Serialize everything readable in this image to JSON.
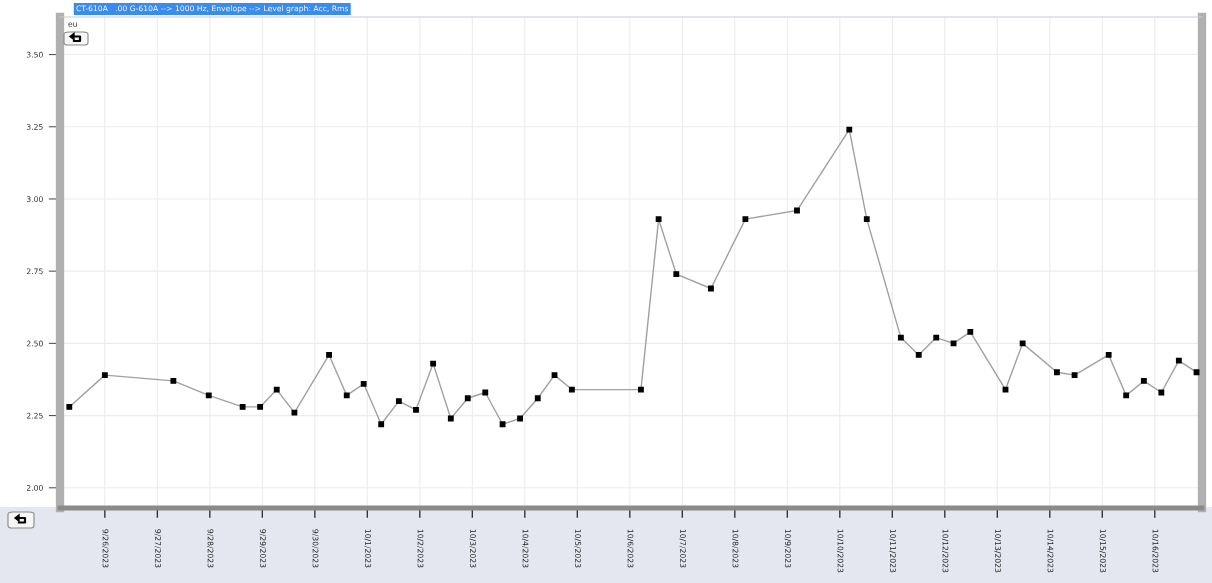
{
  "chart_data": {
    "type": "line",
    "title": "CT-610A   .00 G-610A --> 1000 Hz, Envelope --> Level graph: Acc, Rms",
    "ylabel": "eu",
    "x": [
      "2023-09-25T07:45",
      "2023-09-26T00:00",
      "2023-09-27T07:20",
      "2023-09-27T23:30",
      "2023-09-28T15:00",
      "2023-09-28T23:00",
      "2023-09-29T06:35",
      "2023-09-29T14:40",
      "2023-09-30T06:30",
      "2023-09-30T14:35",
      "2023-09-30T22:20",
      "2023-10-01T06:20",
      "2023-10-01T14:25",
      "2023-10-01T22:15",
      "2023-10-02T06:05",
      "2023-10-02T14:10",
      "2023-10-02T21:55",
      "2023-10-03T05:55",
      "2023-10-03T13:50",
      "2023-10-03T21:50",
      "2023-10-04T05:55",
      "2023-10-04T13:35",
      "2023-10-04T21:30",
      "2023-10-06T05:05",
      "2023-10-06T13:10",
      "2023-10-06T21:15",
      "2023-10-07T13:05",
      "2023-10-08T04:50",
      "2023-10-09T04:25",
      "2023-10-10T04:20",
      "2023-10-10T12:20",
      "2023-10-11T03:55",
      "2023-10-11T12:05",
      "2023-10-11T20:05",
      "2023-10-12T04:00",
      "2023-10-12T11:40",
      "2023-10-13T03:45",
      "2023-10-13T11:35",
      "2023-10-14T03:15",
      "2023-10-14T11:20",
      "2023-10-15T02:55",
      "2023-10-15T10:55",
      "2023-10-15T19:00",
      "2023-10-16T03:00",
      "2023-10-16T11:00",
      "2023-10-16T19:05"
    ],
    "series": [
      {
        "color": "#a0a0a0",
        "values": [
          2.28,
          2.39,
          2.37,
          2.32,
          2.28,
          2.28,
          2.34,
          2.26,
          2.46,
          2.32,
          2.36,
          2.22,
          2.3,
          2.27,
          2.43,
          2.24,
          2.31,
          2.33,
          2.22,
          2.24,
          2.31,
          2.39,
          2.34,
          2.34,
          2.93,
          2.74,
          2.69,
          2.93,
          2.96,
          3.24,
          2.93,
          2.52,
          2.46,
          2.52,
          2.5,
          2.54,
          2.34,
          2.5,
          2.4,
          2.39,
          2.46,
          2.32,
          2.37,
          2.33,
          2.44,
          2.4
        ]
      }
    ],
    "marker": "square",
    "line_style": "solid",
    "xlim": [
      "2023-09-25T03:30",
      "2023-10-16T21:35"
    ],
    "xticks": [
      {
        "value": "2023-09-26",
        "label": "9/26/2023"
      },
      {
        "value": "2023-09-27",
        "label": "9/27/2023"
      },
      {
        "value": "2023-09-28",
        "label": "9/28/2023"
      },
      {
        "value": "2023-09-29",
        "label": "9/29/2023"
      },
      {
        "value": "2023-09-30",
        "label": "9/30/2023"
      },
      {
        "value": "2023-10-01",
        "label": "10/1/2023"
      },
      {
        "value": "2023-10-02",
        "label": "10/2/2023"
      },
      {
        "value": "2023-10-03",
        "label": "10/3/2023"
      },
      {
        "value": "2023-10-04",
        "label": "10/4/2023"
      },
      {
        "value": "2023-10-05",
        "label": "10/5/2023"
      },
      {
        "value": "2023-10-06",
        "label": "10/6/2023"
      },
      {
        "value": "2023-10-07",
        "label": "10/7/2023"
      },
      {
        "value": "2023-10-08",
        "label": "10/8/2023"
      },
      {
        "value": "2023-10-09",
        "label": "10/9/2023"
      },
      {
        "value": "2023-10-10",
        "label": "10/10/2023"
      },
      {
        "value": "2023-10-11",
        "label": "10/11/2023"
      },
      {
        "value": "2023-10-12",
        "label": "10/12/2023"
      },
      {
        "value": "2023-10-13",
        "label": "10/13/2023"
      },
      {
        "value": "2023-10-14",
        "label": "10/14/2023"
      },
      {
        "value": "2023-10-15",
        "label": "10/15/2023"
      },
      {
        "value": "2023-10-16",
        "label": "10/16/2023"
      }
    ],
    "ylim": [
      1.93,
      3.63
    ],
    "yticks": [
      {
        "value": 2,
        "label": "2.00"
      },
      {
        "value": 2.25,
        "label": "2.25"
      },
      {
        "value": 2.5,
        "label": "2.50"
      },
      {
        "value": 2.75,
        "label": "2.75"
      },
      {
        "value": 3,
        "label": "3.00"
      },
      {
        "value": 3.25,
        "label": "3.25"
      },
      {
        "value": 3.5,
        "label": "3.50"
      }
    ],
    "grid": true
  }
}
